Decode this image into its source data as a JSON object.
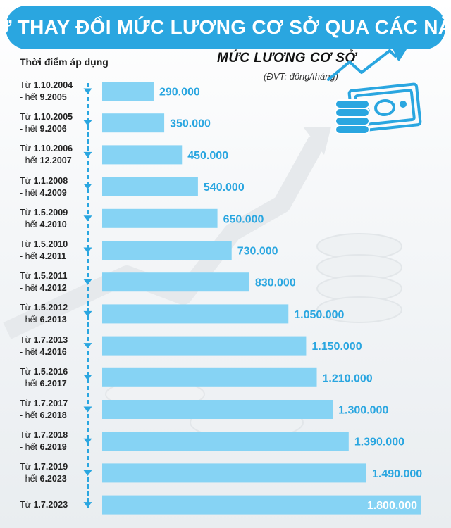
{
  "title": "SỰ THAY ĐỔI MỨC LƯƠNG CƠ SỞ QUA CÁC NĂM",
  "column_header": "Thời điểm áp dụng",
  "legend": {
    "title": "MỨC LƯƠNG CƠ SỞ",
    "unit": "(ĐVT: đồng/tháng)"
  },
  "icons": {
    "money": "money-growth-icon",
    "marker": "triangle-marker-icon"
  },
  "colors": {
    "accent": "#2aa6e0",
    "bar": "#86d3f4",
    "value_text": "#2aa6e0",
    "last_value_text": "#ffffff"
  },
  "chart_data": {
    "type": "bar",
    "orientation": "horizontal",
    "xlim": [
      0,
      1800000
    ],
    "categories": [
      {
        "from": "Từ 1.10.2004",
        "to": "- hết 9.2005"
      },
      {
        "from": "Từ 1.10.2005",
        "to": "- hết 9.2006"
      },
      {
        "from": "Từ 1.10.2006",
        "to": "- hết 12.2007"
      },
      {
        "from": "Từ 1.1.2008",
        "to": "- hết 4.2009"
      },
      {
        "from": "Từ 1.5.2009",
        "to": "- hết 4.2010"
      },
      {
        "from": "Từ 1.5.2010",
        "to": "- hết 4.2011"
      },
      {
        "from": "Từ 1.5.2011",
        "to": "- hết 4.2012"
      },
      {
        "from": "Từ 1.5.2012",
        "to": "- hết 6.2013"
      },
      {
        "from": "Từ 1.7.2013",
        "to": "- hết 4.2016"
      },
      {
        "from": "Từ 1.5.2016",
        "to": "- hết 6.2017"
      },
      {
        "from": "Từ 1.7.2017",
        "to": "- hết 6.2018"
      },
      {
        "from": "Từ 1.7.2018",
        "to": "- hết 6.2019"
      },
      {
        "from": "Từ 1.7.2019",
        "to": "- hết 6.2023"
      },
      {
        "from": "Từ 1.7.2023",
        "to": ""
      }
    ],
    "values": [
      290000,
      350000,
      450000,
      540000,
      650000,
      730000,
      830000,
      1050000,
      1150000,
      1210000,
      1300000,
      1390000,
      1490000,
      1800000
    ],
    "value_labels": [
      "290.000",
      "350.000",
      "450.000",
      "540.000",
      "650.000",
      "730.000",
      "830.000",
      "1.050.000",
      "1.150.000",
      "1.210.000",
      "1.300.000",
      "1.390.000",
      "1.490.000",
      "1.800.000"
    ]
  }
}
